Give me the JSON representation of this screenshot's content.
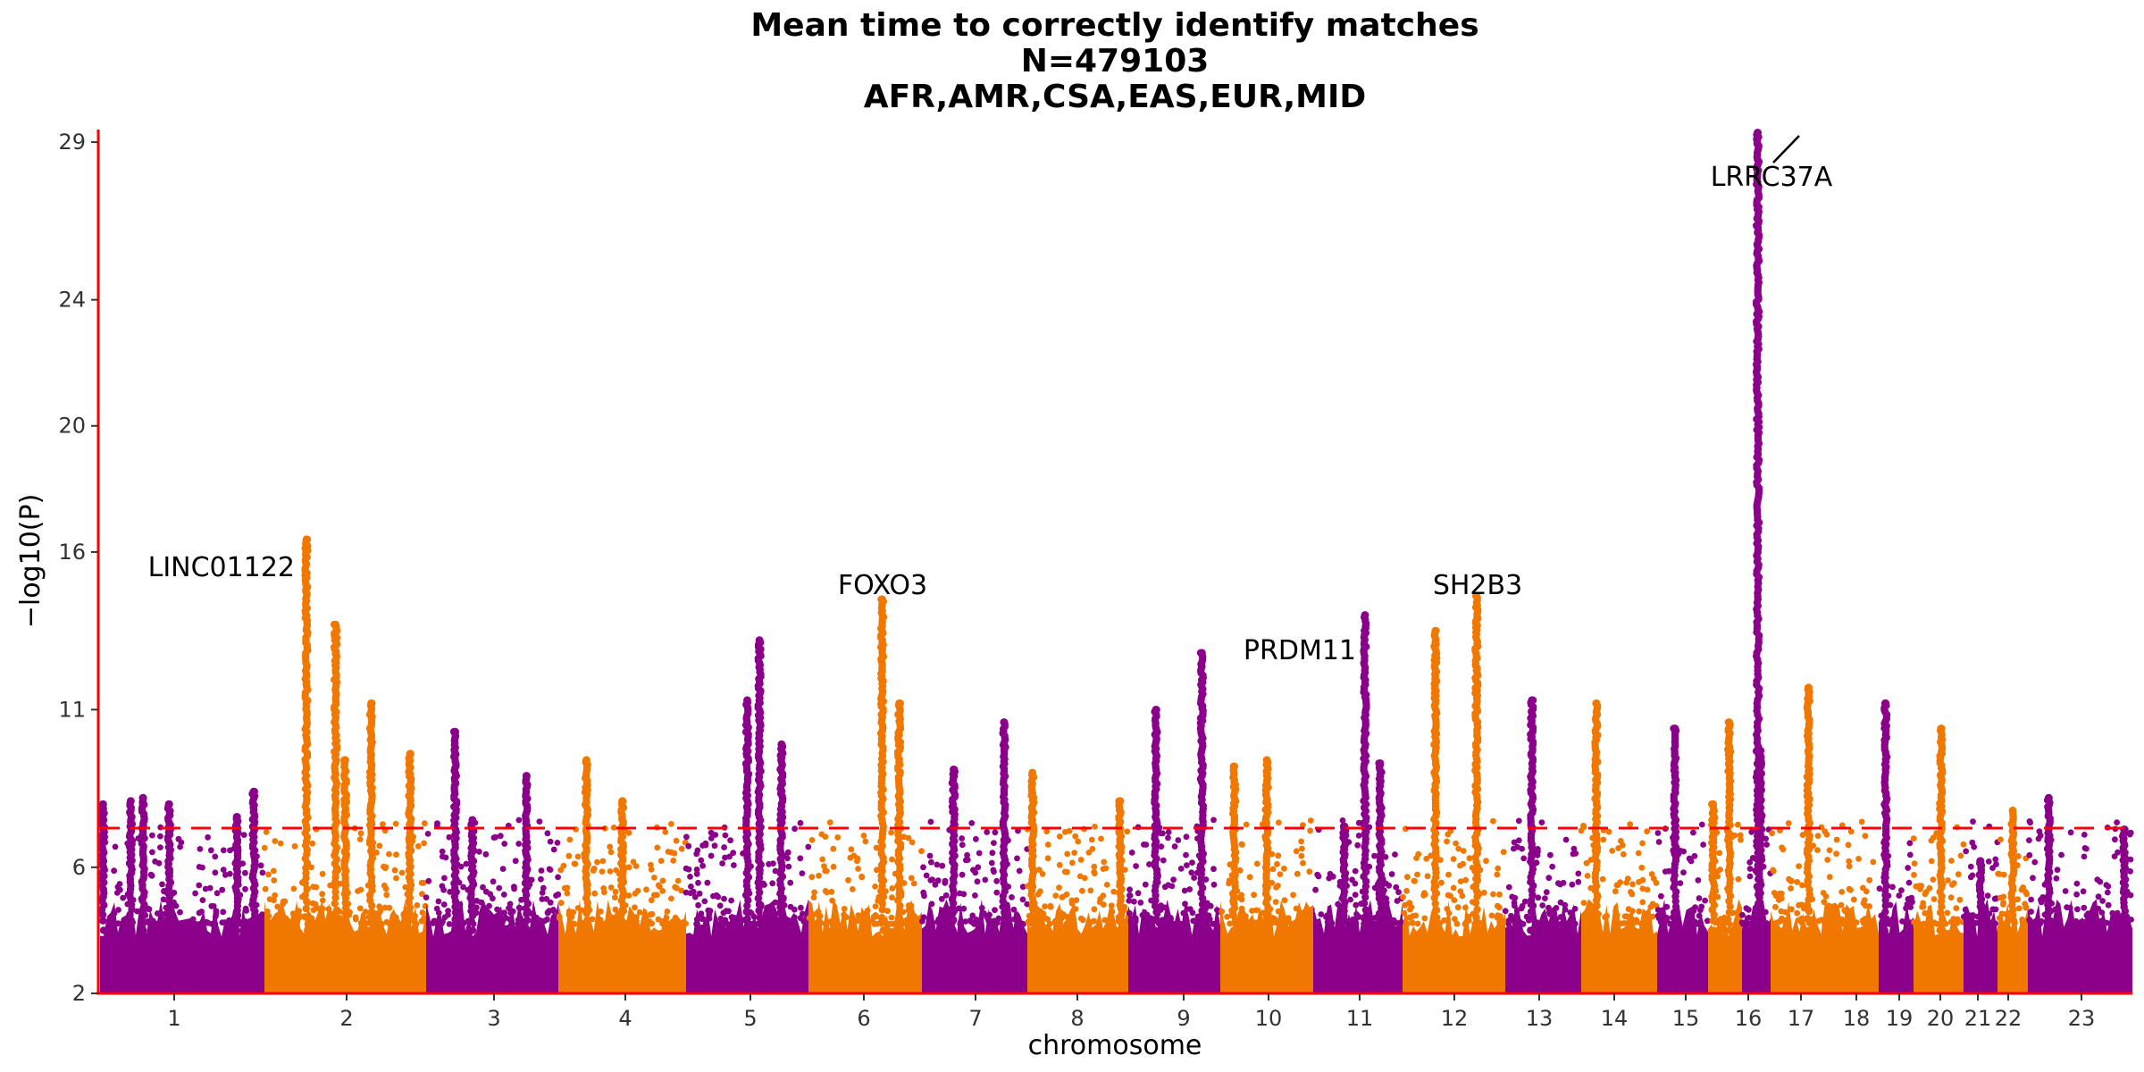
{
  "chart_data": {
    "type": "scatter",
    "subtype": "manhattan",
    "title": [
      "Mean time to correctly identify matches",
      "N=479103",
      "AFR,AMR,CSA,EAS,EUR,MID"
    ],
    "xlabel": "chromosome",
    "ylabel": "−log10(P)",
    "yticks": [
      2,
      6,
      11,
      16,
      20,
      24,
      29
    ],
    "ylim": [
      2,
      29.4
    ],
    "significance_threshold": 7.3,
    "colors": {
      "odd": "#8B008B",
      "even": "#F07800",
      "threshold": "#FF0000",
      "axis": "#FF0000"
    },
    "chromosomes": [
      {
        "label": "1",
        "peaks": [
          [
            0.02,
            8.0
          ],
          [
            0.2,
            8.1
          ],
          [
            0.28,
            8.2
          ],
          [
            0.45,
            8.0
          ],
          [
            0.82,
            7.6
          ],
          [
            0.93,
            8.4
          ]
        ]
      },
      {
        "label": "2",
        "peaks": [
          [
            0.26,
            16.4
          ],
          [
            0.44,
            13.7
          ],
          [
            0.66,
            11.2
          ],
          [
            0.5,
            9.4
          ],
          [
            0.9,
            9.6
          ]
        ]
      },
      {
        "label": "3",
        "peaks": [
          [
            0.22,
            10.3
          ],
          [
            0.35,
            7.5
          ],
          [
            0.76,
            8.9
          ]
        ]
      },
      {
        "label": "4",
        "peaks": [
          [
            0.22,
            9.4
          ],
          [
            0.5,
            8.1
          ]
        ]
      },
      {
        "label": "5",
        "peaks": [
          [
            0.5,
            11.3
          ],
          [
            0.6,
            13.2
          ],
          [
            0.78,
            9.9
          ]
        ]
      },
      {
        "label": "6",
        "peaks": [
          [
            0.65,
            14.5
          ],
          [
            0.8,
            11.2
          ]
        ]
      },
      {
        "label": "7",
        "peaks": [
          [
            0.3,
            9.1
          ],
          [
            0.78,
            10.6
          ]
        ]
      },
      {
        "label": "8",
        "peaks": [
          [
            0.05,
            9.0
          ],
          [
            0.92,
            8.1
          ]
        ]
      },
      {
        "label": "9",
        "peaks": [
          [
            0.8,
            12.8
          ],
          [
            0.3,
            11.0
          ]
        ]
      },
      {
        "label": "10",
        "peaks": [
          [
            0.15,
            9.2
          ],
          [
            0.5,
            9.4
          ]
        ]
      },
      {
        "label": "11",
        "peaks": [
          [
            0.35,
            7.3
          ],
          [
            0.58,
            14.0
          ],
          [
            0.75,
            9.3
          ]
        ]
      },
      {
        "label": "12",
        "peaks": [
          [
            0.32,
            13.5
          ],
          [
            0.72,
            14.6
          ]
        ]
      },
      {
        "label": "13",
        "peaks": [
          [
            0.35,
            11.3
          ]
        ]
      },
      {
        "label": "14",
        "peaks": [
          [
            0.2,
            11.2
          ]
        ]
      },
      {
        "label": "15",
        "peaks": [
          [
            0.35,
            10.4
          ]
        ]
      },
      {
        "label": "16",
        "peaks": [
          [
            0.15,
            8.0
          ],
          [
            0.62,
            10.6
          ]
        ]
      },
      {
        "label": "17",
        "peaks": [
          [
            0.55,
            29.3
          ],
          [
            0.65,
            9.7
          ]
        ]
      },
      {
        "label": "18",
        "peaks": [
          [
            0.35,
            11.7
          ]
        ]
      },
      {
        "label": "19",
        "peaks": [
          [
            0.2,
            11.2
          ]
        ]
      },
      {
        "label": "20",
        "peaks": [
          [
            0.55,
            10.4
          ]
        ]
      },
      {
        "label": "21",
        "peaks": [
          [
            0.5,
            6.2
          ]
        ]
      },
      {
        "label": "22",
        "peaks": [
          [
            0.5,
            7.8
          ]
        ]
      },
      {
        "label": "23",
        "peaks": [
          [
            0.2,
            8.2
          ],
          [
            0.92,
            7.2
          ]
        ]
      }
    ],
    "annotations": [
      {
        "label": "LINC01122"
      },
      {
        "label": "FOXO3"
      },
      {
        "label": "PRDM11"
      },
      {
        "label": "SH2B3"
      },
      {
        "label": "LRRC37A"
      }
    ]
  }
}
